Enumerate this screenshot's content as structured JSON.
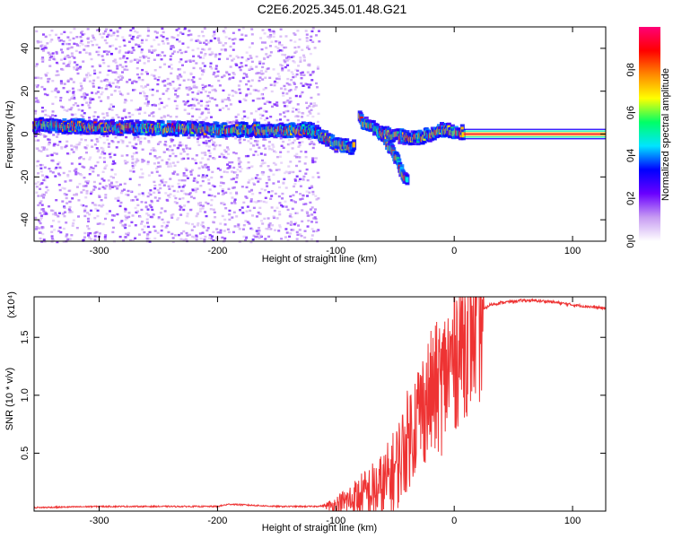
{
  "title": "C2E6.2025.345.01.48.G21",
  "chart_data": [
    {
      "type": "heatmap",
      "xlabel": "Height of straight line (km)",
      "ylabel": "Frequency (Hz)",
      "xlim": [
        -355,
        128
      ],
      "ylim": [
        -50,
        50
      ],
      "xticks": [
        -300,
        -200,
        -100,
        0,
        100
      ],
      "yticks": [
        -40,
        -20,
        0,
        20,
        40
      ],
      "ridge": {
        "description_points": [
          {
            "x": -355,
            "y": 4
          },
          {
            "x": -200,
            "y": 2
          },
          {
            "x": -120,
            "y": 2
          },
          {
            "x": -100,
            "y": -5
          },
          {
            "x": -85,
            "y": -6
          },
          {
            "x": -80,
            "y": 7
          },
          {
            "x": -60,
            "y": 0
          },
          {
            "x": -40,
            "y": -22
          },
          {
            "x": -30,
            "y": -2
          },
          {
            "x": -10,
            "y": 2
          },
          {
            "x": 5,
            "y": 1
          },
          {
            "x": 128,
            "y": 0
          }
        ]
      },
      "colorbar": {
        "label": "Normalized spectral amplitude",
        "range": [
          0,
          1
        ],
        "ticks": [
          "0.0",
          "0.2",
          "0.4",
          "0.6",
          "0.8"
        ],
        "colors": [
          "#ffffff",
          "#c79cf2",
          "#6a00ff",
          "#0000ff",
          "#00e5ff",
          "#00ff66",
          "#ffff00",
          "#ff8800",
          "#ff0000",
          "#ff0077"
        ]
      }
    },
    {
      "type": "line",
      "xlabel": "Height of straight line (km)",
      "ylabel": "SNR (10 * v/v)",
      "scale_label": "(x10⁴)",
      "xlim": [
        -355,
        128
      ],
      "ylim": [
        0,
        1.85
      ],
      "xticks": [
        -300,
        -200,
        -100,
        0,
        100
      ],
      "yticks": [
        "0.5",
        "1.0",
        "1.5"
      ],
      "color": "#ee3333",
      "series": [
        {
          "x": [
            -355,
            -300,
            -250,
            -200,
            -190,
            -150,
            -120,
            -100,
            -80,
            -60,
            -50,
            -40,
            -30,
            -20,
            -10,
            0,
            10,
            20,
            30,
            40,
            60,
            80,
            100,
            128
          ],
          "values": [
            0.03,
            0.04,
            0.04,
            0.04,
            0.06,
            0.04,
            0.04,
            0.05,
            0.12,
            0.2,
            0.35,
            0.6,
            0.85,
            1.0,
            1.1,
            1.35,
            1.55,
            1.7,
            1.78,
            1.8,
            1.82,
            1.81,
            1.78,
            1.75
          ]
        }
      ]
    }
  ]
}
